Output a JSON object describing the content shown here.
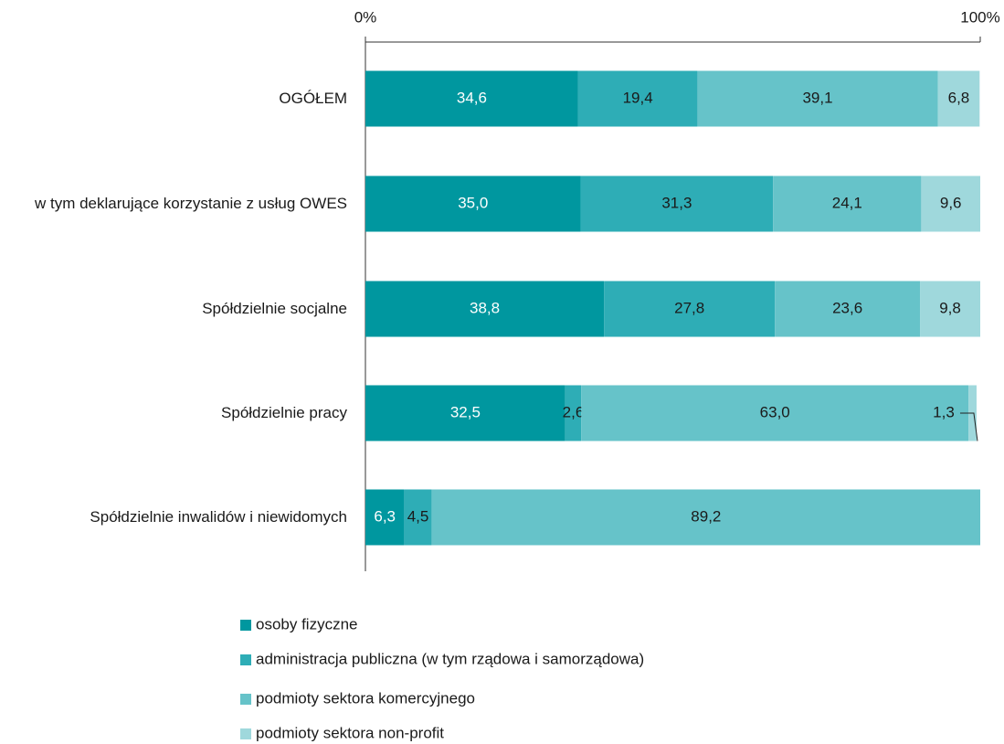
{
  "chart_data": {
    "type": "stacked_bar_horizontal",
    "categories": [
      "OGÓŁEM",
      "w tym deklarujące korzystanie z usług OWES",
      "Spółdzielnie socjalne",
      "Spółdzielnie pracy",
      "Spółdzielnie inwalidów i niewidomych"
    ],
    "series": [
      {
        "name": "osoby fizyczne",
        "color": "#00979f",
        "values": [
          34.6,
          35.0,
          38.8,
          32.5,
          6.3
        ],
        "value_labels": [
          "34,6",
          "35,0",
          "38,8",
          "32,5",
          "6,3"
        ]
      },
      {
        "name": "administracja publiczna (w tym rządowa i samorządowa)",
        "color": "#2eadb6",
        "values": [
          19.4,
          31.3,
          27.8,
          2.6,
          4.5
        ],
        "value_labels": [
          "19,4",
          "31,3",
          "27,8",
          "2,6",
          "4,5"
        ]
      },
      {
        "name": "podmioty sektora komercyjnego",
        "color": "#66c3c9",
        "values": [
          39.1,
          24.1,
          23.6,
          63.0,
          89.2
        ],
        "value_labels": [
          "39,1",
          "24,1",
          "23,6",
          "63,0",
          "89,2"
        ]
      },
      {
        "name": "podmioty sektora non-profit",
        "color": "#9fd8dc",
        "values": [
          6.8,
          9.6,
          9.8,
          1.3,
          null
        ],
        "value_labels": [
          "6,8",
          "9,6",
          "9,8",
          "1,3",
          null
        ]
      }
    ],
    "xlim": [
      0,
      100
    ],
    "xticks": [
      {
        "value": 0,
        "label": "0%"
      },
      {
        "value": 100,
        "label": "100%"
      }
    ]
  }
}
